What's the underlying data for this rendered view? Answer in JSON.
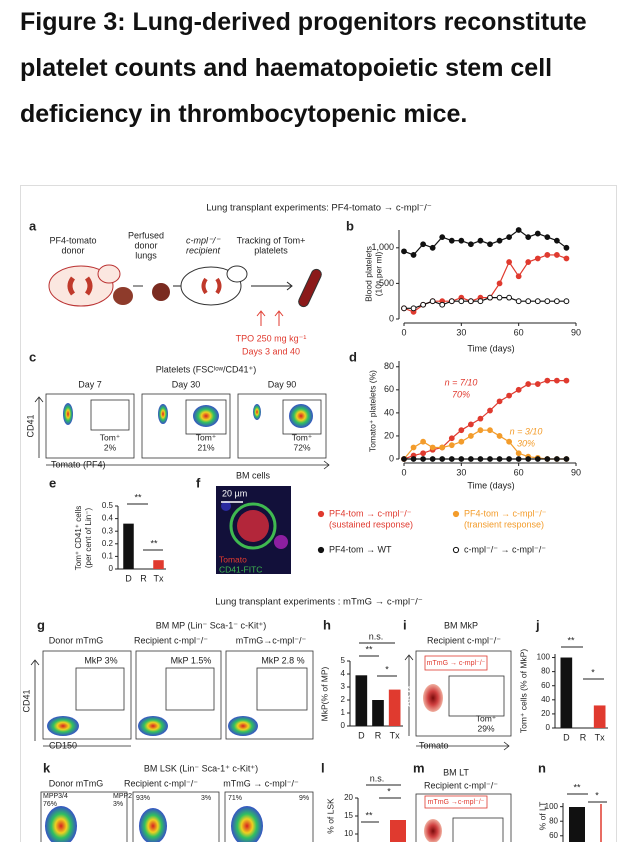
{
  "title": "Figure 3: Lung-derived progenitors reconstitute platelet counts and haematopoietic stem cell deficiency in thrombocytopenic mice.",
  "figure": {
    "header1": "Lung transplant experiments: PF4-tomato → c-mpl⁻/⁻",
    "header2": "Lung transplant experiments : mTmG → c-mpl⁻/⁻",
    "a": {
      "letter": "a",
      "steps": [
        [
          "PF4-tomato",
          "donor"
        ],
        [
          "Perfused",
          "donor",
          "lungs"
        ],
        [
          "c-mpl⁻/⁻",
          "recipient"
        ],
        [
          "Tracking of Tom+",
          "platelets"
        ]
      ],
      "tpo": "TPO 250 mg kg⁻¹",
      "days": "Days 3 and 40"
    },
    "b": {
      "letter": "b",
      "type": "line",
      "ylabel": [
        "Blood platelets",
        "(10⁶ per ml)"
      ],
      "xlabel": "Time (days)",
      "x": [
        0,
        5,
        10,
        15,
        20,
        25,
        30,
        35,
        40,
        45,
        50,
        55,
        60,
        65,
        70,
        75,
        80,
        85
      ],
      "xlim": [
        0,
        90
      ],
      "xticks": [
        0,
        30,
        60,
        90
      ],
      "ylim": [
        0,
        1250
      ],
      "yticks": [
        0,
        500,
        {
          "value": 1000,
          "label": "1,000"
        }
      ],
      "series": [
        {
          "color": "#111111",
          "marker": "filled",
          "values": [
            950,
            900,
            1050,
            1000,
            1150,
            1100,
            1100,
            1050,
            1100,
            1050,
            1100,
            1150,
            1250,
            1150,
            1200,
            1150,
            1100,
            1000
          ]
        },
        {
          "color": "#e03a2f",
          "marker": "filled",
          "values": [
            150,
            100,
            200,
            250,
            250,
            250,
            300,
            250,
            300,
            300,
            500,
            800,
            600,
            800,
            850,
            900,
            900,
            850
          ]
        },
        {
          "color": "#111111",
          "marker": "open",
          "values": [
            150,
            150,
            200,
            250,
            200,
            250,
            250,
            250,
            250,
            300,
            300,
            300,
            250,
            250,
            250,
            250,
            250,
            250
          ]
        }
      ]
    },
    "c": {
      "letter": "c",
      "header": "Platelets (FSCˡᵒʷ/CD41⁺)",
      "plots": [
        {
          "day": "Day 7",
          "gate": "Tom⁺",
          "pct": "2%"
        },
        {
          "day": "Day 30",
          "gate": "Tom⁺",
          "pct": "21%"
        },
        {
          "day": "Day 90",
          "gate": "Tom⁺",
          "pct": "72%"
        }
      ],
      "ylabel": "CD41",
      "xlabel": "Tomato (PF4)"
    },
    "d": {
      "letter": "d",
      "type": "line",
      "ylabel": [
        "Tomato⁺ platelets (%)"
      ],
      "xlabel": "Time (days)",
      "x": [
        0,
        5,
        10,
        15,
        20,
        25,
        30,
        35,
        40,
        45,
        50,
        55,
        60,
        65,
        70,
        75,
        80,
        85
      ],
      "xlim": [
        0,
        90
      ],
      "xticks": [
        0,
        30,
        60,
        90
      ],
      "ylim": [
        0,
        85
      ],
      "yticks": [
        0,
        20,
        40,
        60,
        80
      ],
      "series": [
        {
          "color": "#e03a2f",
          "marker": "filled",
          "values": [
            0,
            3,
            5,
            8,
            10,
            18,
            25,
            30,
            35,
            42,
            50,
            55,
            60,
            65,
            65,
            68,
            68,
            68
          ]
        },
        {
          "color": "#f39c2b",
          "marker": "filled",
          "values": [
            0,
            10,
            15,
            10,
            10,
            12,
            15,
            20,
            25,
            25,
            20,
            15,
            5,
            2,
            1,
            0,
            0,
            0
          ]
        },
        {
          "color": "#111111",
          "marker": "filled",
          "values": [
            0,
            0,
            0,
            0,
            0,
            0,
            0,
            0,
            0,
            0,
            0,
            0,
            0,
            0,
            0,
            0,
            0,
            0
          ]
        }
      ],
      "notes": [
        {
          "text": "n = 7/10",
          "color": "#e03a2f"
        },
        {
          "text": "70%",
          "color": "#e03a2f"
        },
        {
          "text": "n = 3/10",
          "color": "#f39c2b"
        },
        {
          "text": "30%",
          "color": "#f39c2b"
        }
      ]
    },
    "e": {
      "letter": "e",
      "type": "bar",
      "ylabel": [
        "Tom⁺ CD41⁺ cells",
        "(per cent of Lin⁻)"
      ],
      "categories": [
        "D",
        "R",
        "Tx"
      ],
      "values": [
        0.36,
        0,
        0.07
      ],
      "colors": [
        "#111111",
        "#111111",
        "#e03a2f"
      ],
      "ylim": [
        0,
        0.5
      ],
      "yticks": [
        0,
        0.1,
        0.2,
        0.3,
        0.4,
        0.5
      ],
      "sig": [
        "**",
        "**"
      ]
    },
    "f": {
      "letter": "f",
      "title": "BM cells",
      "scale": "20 µm",
      "stain1": "Tomato",
      "stain2": "CD41-FITC"
    },
    "legend": [
      {
        "color": "#e03a2f",
        "marker": "filled",
        "lines": [
          "PF4-tom → c-mpl⁻/⁻",
          "(sustained response)"
        ]
      },
      {
        "color": "#f39c2b",
        "marker": "filled",
        "lines": [
          "PF4-tom → c-mpl⁻/⁻",
          "(transient response)"
        ]
      },
      {
        "color": "#111111",
        "marker": "filled",
        "lines": [
          "PF4-tom → WT"
        ]
      },
      {
        "color": "#111111",
        "marker": "open",
        "lines": [
          "c-mpl⁻/⁻ → c-mpl⁻/⁻"
        ]
      }
    ],
    "g": {
      "letter": "g",
      "title": "BM MP (Lin⁻ Sca-1⁻ c-Kit⁺)",
      "columns": [
        "Donor mTmG",
        "Recipient c-mpl⁻/⁻",
        "mTmG→c-mpl⁻/⁻"
      ],
      "gates": [
        "MkP 3%",
        "MkP 1.5%",
        "MkP 2.8 %"
      ],
      "ylabel": "CD41",
      "xlabel": "CD150"
    },
    "h": {
      "letter": "h",
      "type": "bar",
      "ylabel": [
        "MkP(% of MP)"
      ],
      "categories": [
        "D",
        "R",
        "Tx"
      ],
      "values": [
        3.9,
        2.0,
        2.8
      ],
      "colors": [
        "#111111",
        "#111111",
        "#e03a2f"
      ],
      "ylim": [
        0,
        5
      ],
      "yticks": [
        0,
        1,
        2,
        3,
        4,
        5
      ],
      "sig": [
        "n.s.",
        "**",
        "*"
      ]
    },
    "i": {
      "letter": "i",
      "title": "BM MkP",
      "subtitle": "Recipient c-mpl⁻/⁻",
      "inset": "mTmG → c-mpl⁻/⁻",
      "gate": "Tom⁺",
      "pct": "29%",
      "ylabel": "CD41",
      "xlabel": "Tomato"
    },
    "j": {
      "letter": "j",
      "type": "bar",
      "ylabel": [
        "Tom⁺ cells (% of MkP)"
      ],
      "categories": [
        "D",
        "R",
        "Tx"
      ],
      "values": [
        100,
        0,
        32
      ],
      "colors": [
        "#111111",
        "#111111",
        "#e03a2f"
      ],
      "ylim": [
        0,
        105
      ],
      "yticks": [
        0,
        20,
        40,
        60,
        80,
        100
      ],
      "sig": [
        "**",
        "*"
      ]
    },
    "k": {
      "letter": "k",
      "title": "BM LSK (Lin⁻ Sca-1⁺ c-Kit⁺)",
      "columns": [
        "Donor mTmG",
        "Recipient c-mpl⁻/⁻",
        "mTmG → c-mpl⁻/⁻"
      ],
      "gates": [
        [
          "MPP3/4",
          "76%"
        ],
        [
          "MPP2",
          "3%"
        ],
        [
          "93%"
        ],
        [
          "3%"
        ],
        [
          "71%"
        ],
        [
          "9%"
        ]
      ]
    },
    "l": {
      "letter": "l",
      "type": "axis",
      "ylabel": [
        "% of LSK"
      ],
      "ylim": [
        0,
        20
      ],
      "yticks": [
        10,
        15,
        20
      ],
      "sig": [
        "n.s.",
        "*",
        "**"
      ]
    },
    "m": {
      "letter": "m",
      "title": "BM LT",
      "subtitle": "Recipient c-mpl⁻/⁻",
      "inset": "mTmG →c-mpl⁻/⁻"
    },
    "n": {
      "letter": "n",
      "type": "axis",
      "ylabel": [
        "% of LT"
      ],
      "ylim": [
        0,
        105
      ],
      "yticks": [
        60,
        80,
        100
      ],
      "sig": [
        "**",
        "*"
      ]
    }
  }
}
